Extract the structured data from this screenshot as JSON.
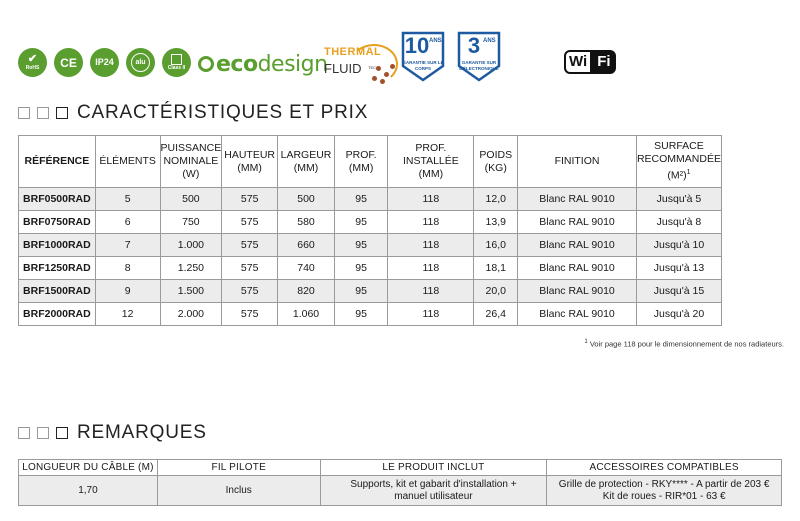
{
  "badges": {
    "rohs": "RoHS",
    "ce": "CE",
    "ip": "IP24",
    "alu": "alu",
    "class": "Class II",
    "eco_pre": "eco",
    "eco_post": "design",
    "thermal_l1": "THERMAL",
    "thermal_l2": "FLUID",
    "thermal_l3": "TECH",
    "warranty1_num": "10",
    "warranty1_unit": "ANS",
    "warranty1_cap": "GARANTIE SUR LE CORPS",
    "warranty2_num": "3",
    "warranty2_unit": "ANS",
    "warranty2_cap": "GARANTIE SUR L'ÉLECTRONIQUE",
    "wifi_a": "Wi",
    "wifi_b": "Fi",
    "icon_names": [
      "rohs-icon",
      "ce-icon",
      "ip24-icon",
      "alu-icon",
      "class2-icon",
      "ecodesign-logo",
      "thermal-fluid-logo",
      "warranty-10-icon",
      "warranty-3-icon",
      "wifi-logo"
    ],
    "green": "#5a9e2f",
    "blue": "#1e5aa0",
    "orange": "#e8a020"
  },
  "section1": {
    "title": "CARACTÉRISTIQUES ET PRIX"
  },
  "section2": {
    "title": "REMARQUES"
  },
  "spec_table": {
    "headers": {
      "ref": "RÉFÉRENCE",
      "elements": "ÉLÉMENTS",
      "power_1": "PUISSANCE",
      "power_2": "NOMINALE",
      "power_3": "(W)",
      "height_1": "HAUTEUR",
      "height_2": "(MM)",
      "width_1": "LARGEUR",
      "width_2": "(MM)",
      "depth_1": "PROF.",
      "depth_2": "(MM)",
      "inst_1": "PROF.",
      "inst_2": "INSTALLÉE",
      "inst_3": "(MM)",
      "weight_1": "POIDS",
      "weight_2": "(KG)",
      "finish": "FINITION",
      "area_1": "SURFACE",
      "area_2": "RECOMMANDÉE",
      "area_3": "(M²)",
      "area_sup": "1"
    },
    "rows": [
      {
        "ref": "BRF0500RAD",
        "elements": "5",
        "power": "500",
        "height": "575",
        "width": "500",
        "depth": "95",
        "inst": "118",
        "weight": "12,0",
        "finish": "Blanc RAL 9010",
        "area": "Jusqu'à 5"
      },
      {
        "ref": "BRF0750RAD",
        "elements": "6",
        "power": "750",
        "height": "575",
        "width": "580",
        "depth": "95",
        "inst": "118",
        "weight": "13,9",
        "finish": "Blanc RAL 9010",
        "area": "Jusqu'à 8"
      },
      {
        "ref": "BRF1000RAD",
        "elements": "7",
        "power": "1.000",
        "height": "575",
        "width": "660",
        "depth": "95",
        "inst": "118",
        "weight": "16,0",
        "finish": "Blanc RAL 9010",
        "area": "Jusqu'à 10"
      },
      {
        "ref": "BRF1250RAD",
        "elements": "8",
        "power": "1.250",
        "height": "575",
        "width": "740",
        "depth": "95",
        "inst": "118",
        "weight": "18,1",
        "finish": "Blanc RAL 9010",
        "area": "Jusqu'à 13"
      },
      {
        "ref": "BRF1500RAD",
        "elements": "9",
        "power": "1.500",
        "height": "575",
        "width": "820",
        "depth": "95",
        "inst": "118",
        "weight": "20,0",
        "finish": "Blanc RAL 9010",
        "area": "Jusqu'à 15"
      },
      {
        "ref": "BRF2000RAD",
        "elements": "12",
        "power": "2.000",
        "height": "575",
        "width": "1.060",
        "depth": "95",
        "inst": "118",
        "weight": "26,4",
        "finish": "Blanc RAL 9010",
        "area": "Jusqu'à  20"
      }
    ]
  },
  "footnote": {
    "sup": "1",
    "text": " Voir page 118 pour le dimensionnement de nos radiateurs."
  },
  "remarks_table": {
    "headers": {
      "cable": "LONGUEUR DU CÂBLE (M)",
      "pilot": "FIL PILOTE",
      "included": "LE PRODUIT INCLUT",
      "accessories": "ACCESSOIRES COMPATIBLES"
    },
    "row": {
      "cable": "1,70",
      "pilot": "Inclus",
      "included_1": "Supports, kit et gabarit d'installation +",
      "included_2": "manuel utilisateur",
      "acc_1": "Grille de protection - RKY**** - A partir de 203 €",
      "acc_2": "Kit de roues - RIR*01 - 63 €"
    }
  }
}
